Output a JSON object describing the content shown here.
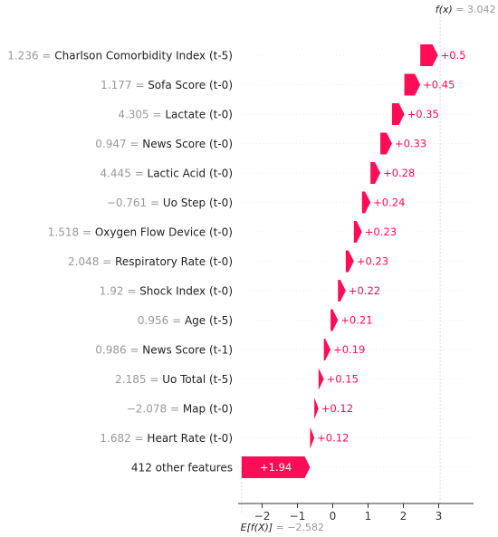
{
  "chart_data": {
    "type": "waterfall",
    "fx": {
      "label": "f(x)",
      "value": "3.042"
    },
    "efx": {
      "label": "E[f(X)]",
      "value": "−2.582"
    },
    "xticks": [
      "−2",
      "−1",
      "0",
      "1",
      "2",
      "3"
    ],
    "xtick_values": [
      -2,
      -1,
      0,
      1,
      2,
      3
    ],
    "xlim": [
      -2.65,
      3.95
    ],
    "base_value": -2.582,
    "final_value": 3.042,
    "colors": {
      "positive": "#ff0d57",
      "negative": "#1e88e5",
      "value_label": "#ff0d57"
    },
    "features": [
      {
        "value": "1.236",
        "name": "Charlson Comorbidity Index (t-5)",
        "contribution": 0.5,
        "contribution_label": "+0.5"
      },
      {
        "value": "1.177",
        "name": "Sofa Score (t-0)",
        "contribution": 0.45,
        "contribution_label": "+0.45"
      },
      {
        "value": "4.305",
        "name": "Lactate (t-0)",
        "contribution": 0.35,
        "contribution_label": "+0.35"
      },
      {
        "value": "0.947",
        "name": "News Score (t-0)",
        "contribution": 0.33,
        "contribution_label": "+0.33"
      },
      {
        "value": "4.445",
        "name": "Lactic Acid (t-0)",
        "contribution": 0.28,
        "contribution_label": "+0.28"
      },
      {
        "value": "−0.761",
        "name": "Uo Step (t-0)",
        "contribution": 0.24,
        "contribution_label": "+0.24"
      },
      {
        "value": "1.518",
        "name": "Oxygen Flow Device (t-0)",
        "contribution": 0.23,
        "contribution_label": "+0.23"
      },
      {
        "value": "2.048",
        "name": "Respiratory Rate (t-0)",
        "contribution": 0.23,
        "contribution_label": "+0.23"
      },
      {
        "value": "1.92",
        "name": "Shock Index (t-0)",
        "contribution": 0.22,
        "contribution_label": "+0.22"
      },
      {
        "value": "0.956",
        "name": "Age (t-5)",
        "contribution": 0.21,
        "contribution_label": "+0.21"
      },
      {
        "value": "0.986",
        "name": "News Score (t-1)",
        "contribution": 0.19,
        "contribution_label": "+0.19"
      },
      {
        "value": "2.185",
        "name": "Uo Total (t-5)",
        "contribution": 0.15,
        "contribution_label": "+0.15"
      },
      {
        "value": "−2.078",
        "name": "Map (t-0)",
        "contribution": 0.12,
        "contribution_label": "+0.12"
      },
      {
        "value": "1.682",
        "name": "Heart Rate (t-0)",
        "contribution": 0.12,
        "contribution_label": "+0.12"
      },
      {
        "value": "",
        "name": "412 other features",
        "contribution": 1.94,
        "contribution_label": "+1.94"
      }
    ]
  }
}
